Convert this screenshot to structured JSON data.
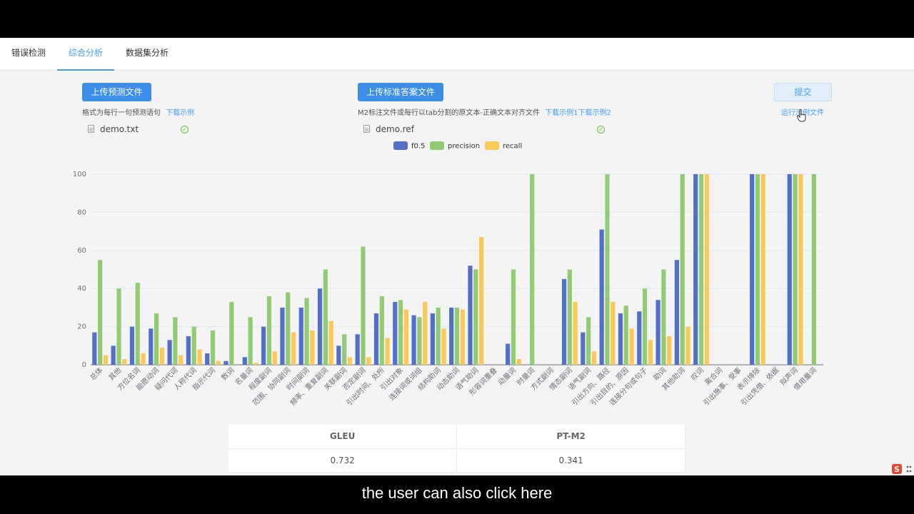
{
  "tabs": [
    {
      "label": "错误检测"
    },
    {
      "label": "综合分析"
    },
    {
      "label": "数据集分析"
    }
  ],
  "active_tab": "综合分析",
  "upload_pred": {
    "button": "上传预测文件",
    "hint": "格式为每行一句预测语句",
    "download": "下载示例",
    "file_name": "demo.txt"
  },
  "upload_ref": {
    "button": "上传标准答案文件",
    "hint": "M2标注文件或每行以tab分割的原文本-正确文本对齐文件",
    "download1": "下载示例1",
    "download2": "下载示例2",
    "file_name": "demo.ref"
  },
  "submit": {
    "label": "提交",
    "run_example": "运行示例文件"
  },
  "colors": {
    "f05": "#5470c6",
    "precision": "#91cc75",
    "recall": "#fac858",
    "accent": "#409eff"
  },
  "chart_data": {
    "type": "bar",
    "legend_position": "top-center",
    "ylim": [
      0,
      100
    ],
    "yticks": [
      0,
      20,
      40,
      60,
      80,
      100
    ],
    "grid": true,
    "categories": [
      "总体",
      "其他",
      "方位名词",
      "能愿动词",
      "疑问代词",
      "人称代词",
      "指示代词",
      "数词",
      "名量词",
      "程度副词",
      "范围、协同副词",
      "时间副词",
      "频率、重复副词",
      "关联副词",
      "否定副词",
      "引出时间、处所",
      "引出对象",
      "连接词或词组",
      "结构助词",
      "动态助词",
      "语气助词",
      "形容词重叠",
      "动量词",
      "时量词",
      "方式副词",
      "情态副词",
      "语气副词",
      "引出方向、路径",
      "引出目的、原因",
      "连接分句或句子",
      "助词",
      "其他助词",
      "叹词",
      "离合词",
      "引出施事、受事",
      "表示排除",
      "引出凭借、依据",
      "拟声词",
      "借用量词"
    ],
    "series": [
      {
        "name": "f0.5",
        "values": [
          17,
          10,
          20,
          19,
          13,
          15,
          6,
          2,
          4,
          20,
          30,
          30,
          40,
          10,
          16,
          27,
          33,
          26,
          27,
          30,
          52,
          0,
          11,
          0,
          0,
          45,
          17,
          71,
          27,
          28,
          34,
          55,
          100,
          0,
          0,
          100,
          0,
          100,
          0
        ]
      },
      {
        "name": "precision",
        "values": [
          55,
          40,
          43,
          27,
          25,
          20,
          18,
          33,
          25,
          36,
          38,
          35,
          50,
          16,
          62,
          36,
          34,
          25,
          30,
          30,
          50,
          0,
          50,
          100,
          0,
          50,
          25,
          100,
          31,
          40,
          50,
          100,
          100,
          0,
          0,
          100,
          0,
          100,
          100
        ]
      },
      {
        "name": "recall",
        "values": [
          5,
          3,
          6,
          9,
          5,
          8,
          2,
          0,
          1,
          7,
          17,
          18,
          23,
          4,
          4,
          14,
          29,
          33,
          19,
          29,
          67,
          0,
          3,
          0,
          0,
          33,
          7,
          33,
          19,
          13,
          15,
          20,
          100,
          0,
          0,
          100,
          0,
          100,
          0
        ]
      }
    ]
  },
  "scores": {
    "headers": [
      "GLEU",
      "PT-M2"
    ],
    "values": [
      "0.732",
      "0.341"
    ]
  },
  "subtitle": "the user can also click here"
}
